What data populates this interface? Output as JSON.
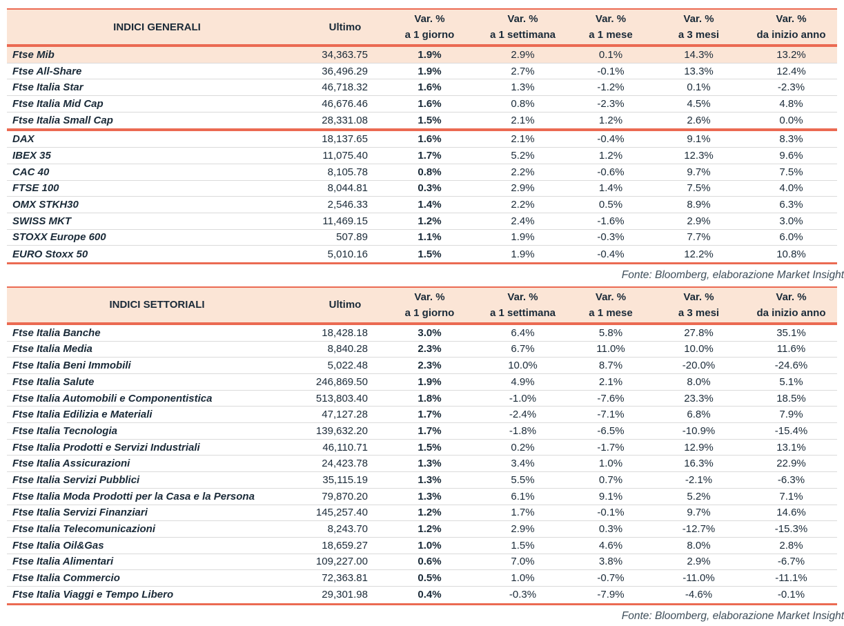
{
  "colors": {
    "accent_line": "#EB6A52",
    "header_background": "#FBE5D6",
    "text": "#1A2A38",
    "row_separator": "#DADADA"
  },
  "source_note": "Fonte: Bloomberg, elaborazione Market Insight",
  "tables": [
    {
      "title": "INDICI GENERALI",
      "col_ultimo": "Ultimo",
      "var_label": "Var. %",
      "periods": [
        "a 1 giorno",
        "a 1 settimana",
        "a 1 mese",
        "a 3 mesi",
        "da inizio anno"
      ],
      "highlight_row": "Ftse Mib",
      "source": "Fonte: Bloomberg, elaborazione Market Insight",
      "groups": [
        {
          "rows": [
            [
              "Ftse Mib",
              "34,363.75",
              "1.9%",
              "2.9%",
              "0.1%",
              "14.3%",
              "13.2%"
            ],
            [
              "Ftse All-Share",
              "36,496.29",
              "1.9%",
              "2.7%",
              "-0.1%",
              "13.3%",
              "12.4%"
            ],
            [
              "Ftse Italia Star",
              "46,718.32",
              "1.6%",
              "1.3%",
              "-1.2%",
              "0.1%",
              "-2.3%"
            ],
            [
              "Ftse Italia Mid Cap",
              "46,676.46",
              "1.6%",
              "0.8%",
              "-2.3%",
              "4.5%",
              "4.8%"
            ],
            [
              "Ftse Italia Small Cap",
              "28,331.08",
              "1.5%",
              "2.1%",
              "1.2%",
              "2.6%",
              "0.0%"
            ]
          ]
        },
        {
          "rows": [
            [
              "DAX",
              "18,137.65",
              "1.6%",
              "2.1%",
              "-0.4%",
              "9.1%",
              "8.3%"
            ],
            [
              "IBEX 35",
              "11,075.40",
              "1.7%",
              "5.2%",
              "1.2%",
              "12.3%",
              "9.6%"
            ],
            [
              "CAC 40",
              "8,105.78",
              "0.8%",
              "2.2%",
              "-0.6%",
              "9.7%",
              "7.5%"
            ],
            [
              "FTSE 100",
              "8,044.81",
              "0.3%",
              "2.9%",
              "1.4%",
              "7.5%",
              "4.0%"
            ],
            [
              "OMX STKH30",
              "2,546.33",
              "1.4%",
              "2.2%",
              "0.5%",
              "8.9%",
              "6.3%"
            ],
            [
              "SWISS MKT",
              "11,469.15",
              "1.2%",
              "2.4%",
              "-1.6%",
              "2.9%",
              "3.0%"
            ],
            [
              "STOXX Europe 600",
              "507.89",
              "1.1%",
              "1.9%",
              "-0.3%",
              "7.7%",
              "6.0%"
            ],
            [
              "EURO Stoxx 50",
              "5,010.16",
              "1.5%",
              "1.9%",
              "-0.4%",
              "12.2%",
              "10.8%"
            ]
          ]
        }
      ]
    },
    {
      "title": "INDICI SETTORIALI",
      "col_ultimo": "Ultimo",
      "var_label": "Var. %",
      "periods": [
        "a 1 giorno",
        "a 1 settimana",
        "a 1 mese",
        "a 3 mesi",
        "da inizio anno"
      ],
      "highlight_row": null,
      "source": "Fonte: Bloomberg, elaborazione Market Insight",
      "groups": [
        {
          "rows": [
            [
              "Ftse Italia Banche",
              "18,428.18",
              "3.0%",
              "6.4%",
              "5.8%",
              "27.8%",
              "35.1%"
            ],
            [
              "Ftse Italia Media",
              "8,840.28",
              "2.3%",
              "6.7%",
              "11.0%",
              "10.0%",
              "11.6%"
            ],
            [
              "Ftse Italia Beni Immobili",
              "5,022.48",
              "2.3%",
              "10.0%",
              "8.7%",
              "-20.0%",
              "-24.6%"
            ],
            [
              "Ftse Italia Salute",
              "246,869.50",
              "1.9%",
              "4.9%",
              "2.1%",
              "8.0%",
              "5.1%"
            ],
            [
              "Ftse Italia Automobili e Componentistica",
              "513,803.40",
              "1.8%",
              "-1.0%",
              "-7.6%",
              "23.3%",
              "18.5%"
            ],
            [
              "Ftse Italia Edilizia e Materiali",
              "47,127.28",
              "1.7%",
              "-2.4%",
              "-7.1%",
              "6.8%",
              "7.9%"
            ],
            [
              "Ftse Italia Tecnologia",
              "139,632.20",
              "1.7%",
              "-1.8%",
              "-6.5%",
              "-10.9%",
              "-15.4%"
            ],
            [
              "Ftse Italia Prodotti e Servizi Industriali",
              "46,110.71",
              "1.5%",
              "0.2%",
              "-1.7%",
              "12.9%",
              "13.1%"
            ],
            [
              "Ftse Italia Assicurazioni",
              "24,423.78",
              "1.3%",
              "3.4%",
              "1.0%",
              "16.3%",
              "22.9%"
            ],
            [
              "Ftse Italia Servizi Pubblici",
              "35,115.19",
              "1.3%",
              "5.5%",
              "0.7%",
              "-2.1%",
              "-6.3%"
            ],
            [
              "Ftse Italia Moda Prodotti per la Casa e la Persona",
              "79,870.20",
              "1.3%",
              "6.1%",
              "9.1%",
              "5.2%",
              "7.1%"
            ],
            [
              "Ftse Italia Servizi Finanziari",
              "145,257.40",
              "1.2%",
              "1.7%",
              "-0.1%",
              "9.7%",
              "14.6%"
            ],
            [
              "Ftse Italia Telecomunicazioni",
              "8,243.70",
              "1.2%",
              "2.9%",
              "0.3%",
              "-12.7%",
              "-15.3%"
            ],
            [
              "Ftse Italia Oil&Gas",
              "18,659.27",
              "1.0%",
              "1.5%",
              "4.6%",
              "8.0%",
              "2.8%"
            ],
            [
              "Ftse Italia Alimentari",
              "109,227.00",
              "0.6%",
              "7.0%",
              "3.8%",
              "2.9%",
              "-6.7%"
            ],
            [
              "Ftse Italia Commercio",
              "72,363.81",
              "0.5%",
              "1.0%",
              "-0.7%",
              "-11.0%",
              "-11.1%"
            ],
            [
              "Ftse Italia Viaggi e Tempo Libero",
              "29,301.98",
              "0.4%",
              "-0.3%",
              "-7.9%",
              "-4.6%",
              "-0.1%"
            ]
          ]
        }
      ]
    }
  ]
}
